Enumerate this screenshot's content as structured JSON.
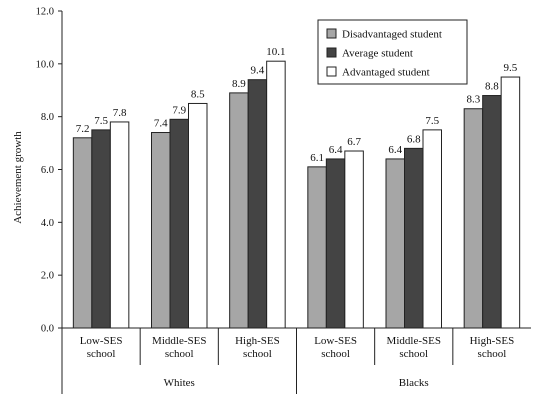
{
  "chart_data": {
    "type": "bar",
    "ylabel": "Achievement growth",
    "ylim": [
      0,
      12
    ],
    "yticks": [
      "0.0",
      "2.0",
      "4.0",
      "6.0",
      "8.0",
      "10.0",
      "12.0"
    ],
    "ytick_values": [
      0,
      2,
      4,
      6,
      8,
      10,
      12
    ],
    "grid": false,
    "legend_position": "top-right",
    "categories": [
      [
        "Low-SES",
        "school"
      ],
      [
        "Middle-SES",
        "school"
      ],
      [
        "High-SES",
        "school"
      ],
      [
        "Low-SES",
        "school"
      ],
      [
        "Middle-SES",
        "school"
      ],
      [
        "High-SES",
        "school"
      ]
    ],
    "groups": [
      {
        "label": "Whites",
        "category_indices": [
          0,
          1,
          2
        ]
      },
      {
        "label": "Blacks",
        "category_indices": [
          3,
          4,
          5
        ]
      }
    ],
    "series": [
      {
        "name": "Disadvantaged student",
        "color": "#a6a6a6",
        "values": [
          7.2,
          7.4,
          8.9,
          6.1,
          6.4,
          8.3
        ],
        "labels": [
          "7.2",
          "7.4",
          "8.9",
          "6.1",
          "6.4",
          "8.3"
        ]
      },
      {
        "name": "Average student",
        "color": "#444444",
        "values": [
          7.5,
          7.9,
          9.4,
          6.4,
          6.8,
          8.8
        ],
        "labels": [
          "7.5",
          "7.9",
          "9.4",
          "6.4",
          "6.8",
          "8.8"
        ]
      },
      {
        "name": "Advantaged student",
        "color": "#ffffff",
        "values": [
          7.8,
          8.5,
          10.1,
          6.7,
          7.5,
          9.5
        ],
        "labels": [
          "7.8",
          "8.5",
          "10.1",
          "6.7",
          "7.5",
          "9.5"
        ]
      }
    ]
  }
}
